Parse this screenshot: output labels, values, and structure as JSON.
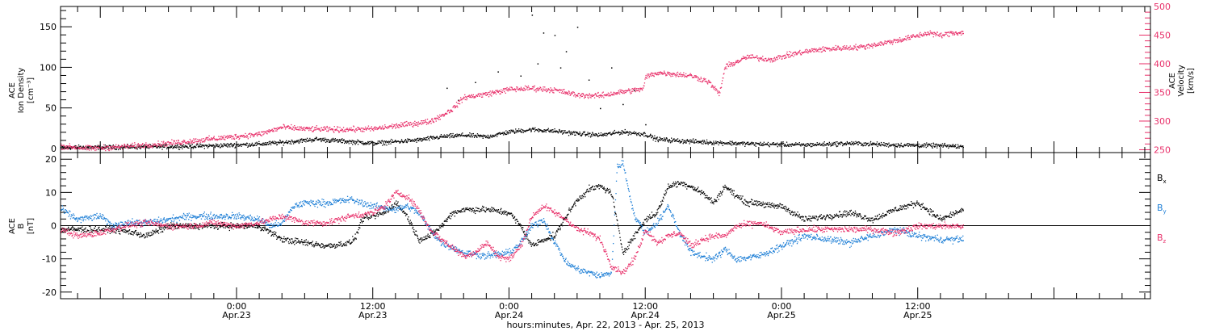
{
  "chart_data": [
    {
      "type": "scatter",
      "panel": "top",
      "ylabel": {
        "line1": "ACE",
        "line2": "Ion Density",
        "line3": "[cm⁻³]"
      },
      "ylim": [
        -5,
        175
      ],
      "yticks": [
        0,
        50,
        100,
        150
      ],
      "y2label": {
        "line1": "ACE",
        "line2": "Velocity",
        "line3": "[km/s]"
      },
      "y2lim": [
        245,
        500
      ],
      "y2ticks": [
        250,
        300,
        350,
        400,
        450,
        500
      ],
      "series": [
        {
          "name": "",
          "color": "#000000",
          "axis": "left",
          "knots": [
            [
              -15.5,
              2
            ],
            [
              -12,
              2
            ],
            [
              -6,
              3
            ],
            [
              -2,
              4
            ],
            [
              2,
              6
            ],
            [
              4,
              8
            ],
            [
              7,
              12
            ],
            [
              10,
              9
            ],
            [
              12,
              7
            ],
            [
              14,
              9
            ],
            [
              16,
              11
            ],
            [
              18,
              15
            ],
            [
              20,
              17
            ],
            [
              22,
              15
            ],
            [
              24,
              21
            ],
            [
              26,
              24
            ],
            [
              28,
              22
            ],
            [
              30,
              19
            ],
            [
              32,
              17
            ],
            [
              34,
              21
            ],
            [
              36,
              18
            ],
            [
              37,
              12
            ],
            [
              39,
              10
            ],
            [
              42,
              8
            ],
            [
              46,
              6
            ],
            [
              50,
              5
            ],
            [
              54,
              7
            ],
            [
              58,
              5
            ],
            [
              62,
              4
            ],
            [
              64,
              3
            ]
          ],
          "spread": 4,
          "outliers": [
            [
              18.5,
              75
            ],
            [
              19.5,
              60
            ],
            [
              21,
              82
            ],
            [
              23,
              95
            ],
            [
              25,
              90
            ],
            [
              26,
              165
            ],
            [
              27,
              143
            ],
            [
              28,
              140
            ],
            [
              29,
              120
            ],
            [
              30,
              150
            ],
            [
              31,
              85
            ],
            [
              32,
              50
            ],
            [
              33,
              100
            ],
            [
              34,
              55
            ],
            [
              35,
              72
            ],
            [
              36,
              30
            ],
            [
              26.5,
              105
            ],
            [
              28.5,
              100
            ]
          ]
        },
        {
          "name": "",
          "color": "#e8306a",
          "axis": "right",
          "knots": [
            [
              -15.5,
              257
            ],
            [
              -13,
              253
            ],
            [
              -10,
              256
            ],
            [
              -6,
              262
            ],
            [
              -2,
              270
            ],
            [
              2,
              278
            ],
            [
              4,
              290
            ],
            [
              6,
              287
            ],
            [
              9,
              286
            ],
            [
              12,
              287
            ],
            [
              15,
              295
            ],
            [
              17,
              300
            ],
            [
              18,
              310
            ],
            [
              19,
              322
            ],
            [
              20,
              342
            ],
            [
              22,
              348
            ],
            [
              24,
              356
            ],
            [
              26,
              358
            ],
            [
              28,
              355
            ],
            [
              30,
              346
            ],
            [
              32,
              345
            ],
            [
              34,
              352
            ],
            [
              35.8,
              357
            ],
            [
              36,
              378
            ],
            [
              37,
              385
            ],
            [
              38,
              384
            ],
            [
              40,
              380
            ],
            [
              41.5,
              370
            ],
            [
              42.5,
              348
            ],
            [
              43,
              395
            ],
            [
              45,
              413
            ],
            [
              47,
              408
            ],
            [
              49,
              418
            ],
            [
              51,
              425
            ],
            [
              53,
              428
            ],
            [
              55,
              430
            ],
            [
              57,
              437
            ],
            [
              59,
              445
            ],
            [
              61,
              455
            ],
            [
              62,
              450
            ],
            [
              63,
              455
            ],
            [
              64,
              455
            ]
          ],
          "spread": 7
        }
      ]
    },
    {
      "type": "scatter",
      "panel": "bottom",
      "ylabel": {
        "line1": "ACE",
        "line2": "B",
        "line3": "[nT]"
      },
      "ylim": [
        -22,
        22
      ],
      "yticks": [
        -20,
        -10,
        0,
        10,
        20
      ],
      "series": [
        {
          "name": "Bx",
          "sub": "x",
          "color": "#000000",
          "knots": [
            [
              -15.5,
              -1
            ],
            [
              -11,
              -1
            ],
            [
              -9,
              -2
            ],
            [
              -8,
              -3
            ],
            [
              -6,
              0
            ],
            [
              -4,
              0
            ],
            [
              -2,
              0
            ],
            [
              0,
              0
            ],
            [
              2,
              0
            ],
            [
              3,
              -2
            ],
            [
              4,
              -4
            ],
            [
              6,
              -5
            ],
            [
              8,
              -6
            ],
            [
              10,
              -5
            ],
            [
              10.5,
              -3
            ],
            [
              11,
              2
            ],
            [
              13,
              4
            ],
            [
              14,
              7
            ],
            [
              15,
              3
            ],
            [
              16,
              -4
            ],
            [
              17,
              -3
            ],
            [
              18,
              0
            ],
            [
              19,
              4
            ],
            [
              20,
              5
            ],
            [
              22,
              5
            ],
            [
              24,
              4
            ],
            [
              25,
              0
            ],
            [
              26,
              -6
            ],
            [
              27,
              -4
            ],
            [
              28,
              -3
            ],
            [
              29,
              3
            ],
            [
              30,
              8
            ],
            [
              31,
              11
            ],
            [
              32,
              12
            ],
            [
              33,
              10
            ],
            [
              34,
              -8
            ],
            [
              35,
              -3
            ],
            [
              36,
              2
            ],
            [
              37,
              4
            ],
            [
              38,
              12
            ],
            [
              39,
              13
            ],
            [
              40,
              12
            ],
            [
              41,
              10
            ],
            [
              42,
              7
            ],
            [
              43,
              12
            ],
            [
              44,
              9
            ],
            [
              45,
              7
            ],
            [
              46,
              7
            ],
            [
              47,
              6
            ],
            [
              48,
              6
            ],
            [
              49,
              4
            ],
            [
              50,
              2
            ],
            [
              52,
              3
            ],
            [
              54,
              4
            ],
            [
              56,
              2
            ],
            [
              58,
              5
            ],
            [
              60,
              7
            ],
            [
              62,
              2
            ],
            [
              64,
              5
            ]
          ],
          "spread": 1.4
        },
        {
          "name": "By",
          "sub": "y",
          "color": "#1e7fd6",
          "knots": [
            [
              -15.5,
              5
            ],
            [
              -14,
              2
            ],
            [
              -12,
              3
            ],
            [
              -11,
              0
            ],
            [
              -10,
              1
            ],
            [
              -8,
              1
            ],
            [
              -6,
              2
            ],
            [
              -4,
              3
            ],
            [
              -2,
              3
            ],
            [
              0,
              3
            ],
            [
              2,
              2
            ],
            [
              3,
              0
            ],
            [
              4,
              1
            ],
            [
              5,
              6
            ],
            [
              6,
              7
            ],
            [
              8,
              7
            ],
            [
              10,
              8
            ],
            [
              12,
              6
            ],
            [
              14,
              5
            ],
            [
              15,
              6
            ],
            [
              16,
              4
            ],
            [
              17,
              -1
            ],
            [
              18,
              -5
            ],
            [
              20,
              -8
            ],
            [
              22,
              -9
            ],
            [
              24,
              -8
            ],
            [
              25,
              -5
            ],
            [
              26,
              0
            ],
            [
              27,
              2
            ],
            [
              28,
              -5
            ],
            [
              29,
              -11
            ],
            [
              30,
              -13
            ],
            [
              31,
              -14
            ],
            [
              32,
              -15
            ],
            [
              33,
              -14
            ],
            [
              33.5,
              18
            ],
            [
              34,
              19
            ],
            [
              35,
              3
            ],
            [
              36,
              -2
            ],
            [
              37,
              1
            ],
            [
              38,
              6
            ],
            [
              39,
              -2
            ],
            [
              40,
              -8
            ],
            [
              42,
              -10
            ],
            [
              43,
              -7
            ],
            [
              44,
              -10
            ],
            [
              46,
              -9
            ],
            [
              48,
              -6
            ],
            [
              50,
              -3
            ],
            [
              52,
              -4
            ],
            [
              54,
              -5
            ],
            [
              56,
              -3
            ],
            [
              58,
              -1
            ],
            [
              60,
              -3
            ],
            [
              62,
              -4
            ],
            [
              64,
              -4
            ]
          ],
          "spread": 1.5
        },
        {
          "name": "Bz",
          "sub": "z",
          "color": "#e8306a",
          "knots": [
            [
              -15.5,
              -1
            ],
            [
              -14,
              -3
            ],
            [
              -12,
              -2
            ],
            [
              -10,
              0
            ],
            [
              -8,
              1
            ],
            [
              -6,
              0
            ],
            [
              -4,
              0
            ],
            [
              -2,
              1
            ],
            [
              0,
              0
            ],
            [
              2,
              1
            ],
            [
              4,
              3
            ],
            [
              6,
              1
            ],
            [
              8,
              1
            ],
            [
              10,
              3
            ],
            [
              12,
              4
            ],
            [
              13,
              6
            ],
            [
              14,
              10
            ],
            [
              15,
              9
            ],
            [
              16,
              5
            ],
            [
              17,
              -1
            ],
            [
              18,
              -4
            ],
            [
              20,
              -9
            ],
            [
              21,
              -8
            ],
            [
              22,
              -5
            ],
            [
              23,
              -9
            ],
            [
              24,
              -10
            ],
            [
              25,
              -6
            ],
            [
              26,
              3
            ],
            [
              27,
              6
            ],
            [
              28,
              4
            ],
            [
              29,
              2
            ],
            [
              30,
              -1
            ],
            [
              31,
              -2
            ],
            [
              32,
              -4
            ],
            [
              33,
              -12
            ],
            [
              34,
              -14
            ],
            [
              35,
              -10
            ],
            [
              36,
              -1
            ],
            [
              37,
              -5
            ],
            [
              38,
              -3
            ],
            [
              39,
              -2
            ],
            [
              40,
              -6
            ],
            [
              41,
              -4
            ],
            [
              42,
              -3
            ],
            [
              43,
              -3
            ],
            [
              44,
              0
            ],
            [
              46,
              1
            ],
            [
              48,
              -2
            ],
            [
              50,
              -1
            ],
            [
              52,
              -1
            ],
            [
              54,
              -1
            ],
            [
              56,
              -1
            ],
            [
              58,
              -2
            ],
            [
              60,
              0
            ],
            [
              62,
              0
            ],
            [
              64,
              0
            ]
          ],
          "spread": 1.4
        }
      ]
    }
  ],
  "x_axis": {
    "xlim": [
      -15.5,
      80.5
    ],
    "major_ticks": [
      {
        "hour": 0,
        "time": "0:00",
        "date": "Apr.23"
      },
      {
        "hour": 12,
        "time": "12:00",
        "date": "Apr.23"
      },
      {
        "hour": 24,
        "time": "0:00",
        "date": "Apr.24"
      },
      {
        "hour": 36,
        "time": "12:00",
        "date": "Apr.24"
      },
      {
        "hour": 48,
        "time": "0:00",
        "date": "Apr.25"
      },
      {
        "hour": 60,
        "time": "12:00",
        "date": "Apr.25"
      }
    ],
    "title": "hours:minutes, Apr. 22, 2013 - Apr. 25, 2013"
  },
  "data_end_hour": 64
}
